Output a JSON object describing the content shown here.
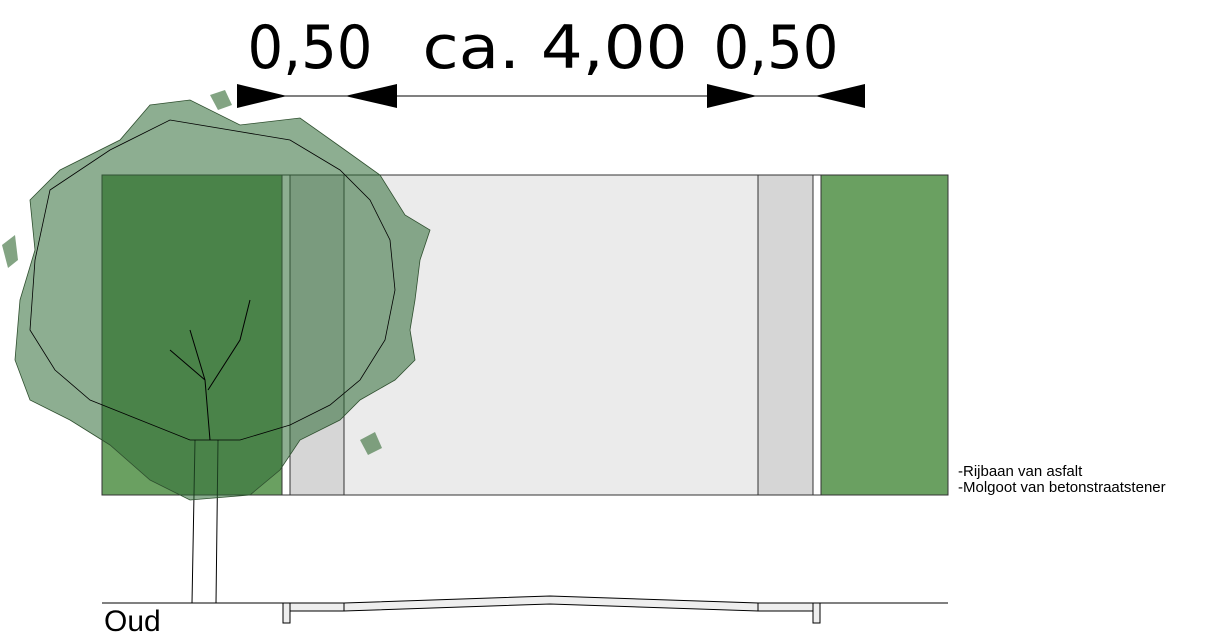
{
  "dimensions": [
    "0,50",
    "ca. 4,00",
    "0,50"
  ],
  "legend": [
    "-Rijbaan van asfalt",
    "-Molgoot van betonstraatstener"
  ],
  "section_label": "Oud"
}
